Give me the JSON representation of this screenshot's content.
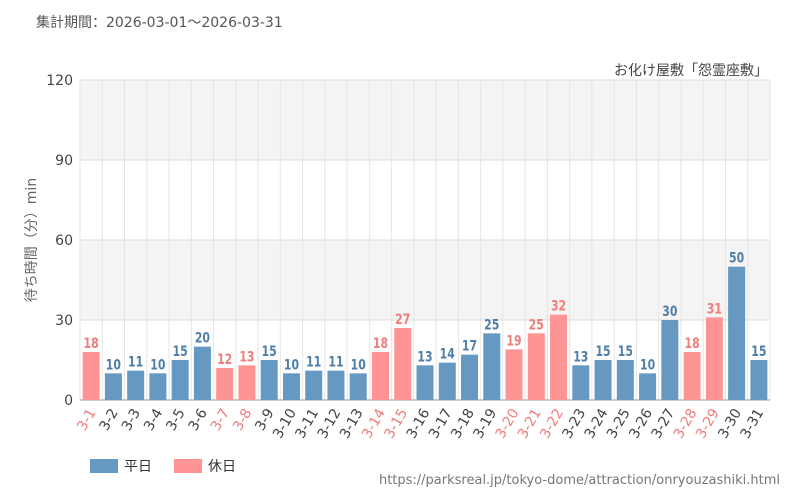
{
  "period_label": "集計期間：2026-03-01～2026-03-31",
  "source_url": "https://parksreal.jp/tokyo-dome/attraction/onryouzashiki.html",
  "legend": {
    "weekday": "平日",
    "holiday": "休日"
  },
  "colors": {
    "weekday": "#6699c2",
    "holiday": "#ff9494",
    "weekday_text": "#4f7fa8",
    "holiday_text": "#f07c7c"
  },
  "chart_data": {
    "type": "bar",
    "title": "お化け屋敷「怨霊座敷」",
    "ylabel": "待ち時間（分）min",
    "xlabel": "",
    "ylim": [
      0,
      120
    ],
    "yticks": [
      0,
      30,
      60,
      90,
      120
    ],
    "grid": true,
    "legend_position": "bottom-left",
    "categories": [
      "3-1",
      "3-2",
      "3-3",
      "3-4",
      "3-5",
      "3-6",
      "3-7",
      "3-8",
      "3-9",
      "3-10",
      "3-11",
      "3-12",
      "3-13",
      "3-14",
      "3-15",
      "3-16",
      "3-17",
      "3-18",
      "3-19",
      "3-20",
      "3-21",
      "3-22",
      "3-23",
      "3-24",
      "3-25",
      "3-26",
      "3-27",
      "3-28",
      "3-29",
      "3-30",
      "3-31"
    ],
    "values": [
      18,
      10,
      11,
      10,
      15,
      20,
      12,
      13,
      15,
      10,
      11,
      11,
      10,
      18,
      27,
      13,
      14,
      17,
      25,
      19,
      25,
      32,
      13,
      15,
      15,
      10,
      30,
      18,
      31,
      50,
      15
    ],
    "day_type": [
      "holiday",
      "weekday",
      "weekday",
      "weekday",
      "weekday",
      "weekday",
      "holiday",
      "holiday",
      "weekday",
      "weekday",
      "weekday",
      "weekday",
      "weekday",
      "holiday",
      "holiday",
      "weekday",
      "weekday",
      "weekday",
      "weekday",
      "holiday",
      "holiday",
      "holiday",
      "weekday",
      "weekday",
      "weekday",
      "weekday",
      "weekday",
      "holiday",
      "holiday",
      "weekday",
      "weekday"
    ]
  }
}
